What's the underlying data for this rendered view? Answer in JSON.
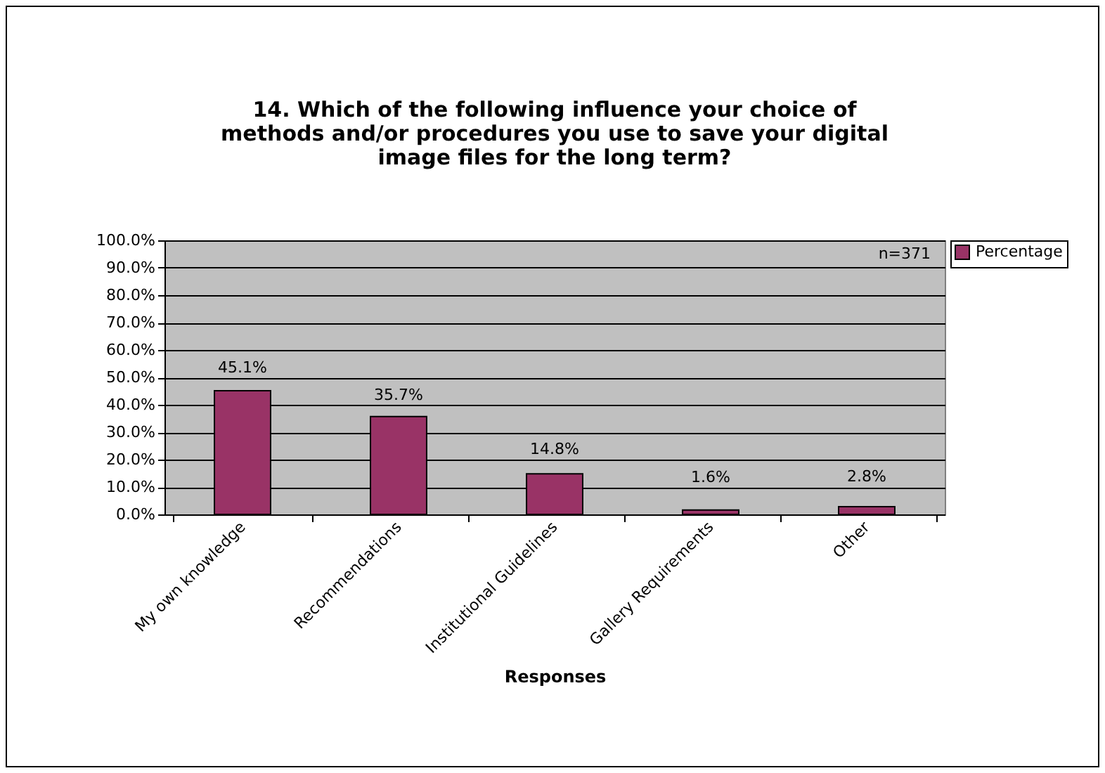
{
  "chart_data": {
    "type": "bar",
    "title": "14. Which of the following influence your choice of methods and/or procedures you use to save your digital image files for the long term?",
    "xlabel": "Responses",
    "categories": [
      "My own knowledge",
      "Recommendations",
      "Institutional Guidelines",
      "Gallery Requirements",
      "Other"
    ],
    "series": [
      {
        "name": "Percentage",
        "color": "#993366",
        "values": [
          45.1,
          35.7,
          14.8,
          1.6,
          2.8
        ],
        "value_labels": [
          "45.1%",
          "35.7%",
          "14.8%",
          "1.6%",
          "2.8%"
        ]
      }
    ],
    "ylim": [
      0,
      100
    ],
    "yticks": [
      {
        "value": 0,
        "label": "0.0%"
      },
      {
        "value": 10,
        "label": "10.0%"
      },
      {
        "value": 20,
        "label": "20.0%"
      },
      {
        "value": 30,
        "label": "30.0%"
      },
      {
        "value": 40,
        "label": "40.0%"
      },
      {
        "value": 50,
        "label": "50.0%"
      },
      {
        "value": 60,
        "label": "60.0%"
      },
      {
        "value": 70,
        "label": "70.0%"
      },
      {
        "value": 80,
        "label": "80.0%"
      },
      {
        "value": 90,
        "label": "90.0%"
      },
      {
        "value": 100,
        "label": "100.0%"
      }
    ],
    "annotations": [
      "n=371"
    ],
    "grid": "y",
    "legend": "right"
  }
}
